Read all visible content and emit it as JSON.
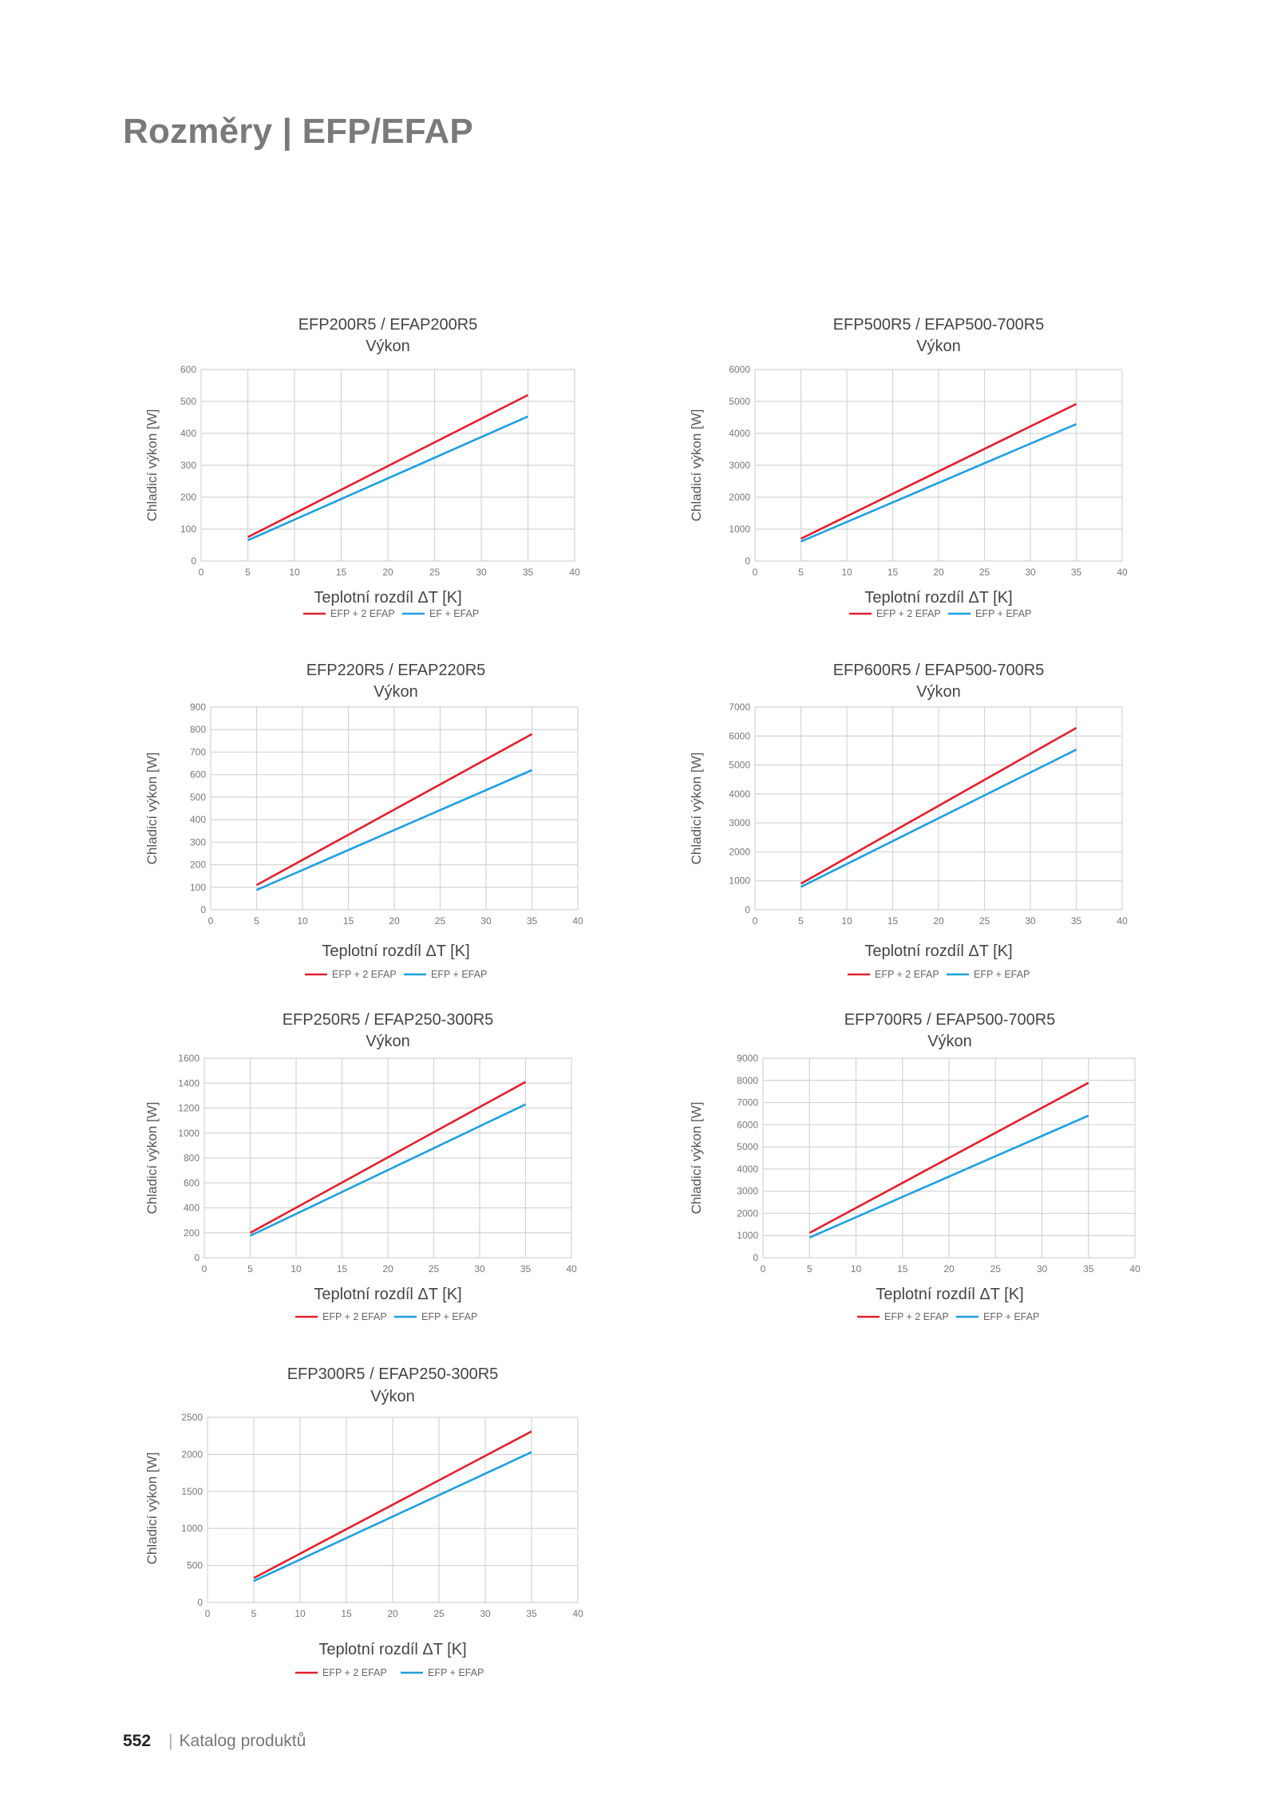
{
  "page": {
    "title": "Rozměry | EFP/EFAP",
    "footer_page_number": "552",
    "footer_separator": "|",
    "footer_text": "Katalog produktů"
  },
  "colors": {
    "series_red": "#e0202e",
    "series_blue": "#1ea0e0",
    "grid": "#d4d4d4"
  },
  "chart_data": [
    {
      "type": "line",
      "title": "EFP200R5 / EFAP200R5",
      "subtitle": "Výkon",
      "xlabel": "Teplotní rozdíl ΔT [K]",
      "ylabel": "Chladicí výkon [W]",
      "xlim": [
        0,
        40
      ],
      "ylim": [
        0,
        600
      ],
      "xticks": [
        0,
        5,
        10,
        15,
        20,
        25,
        30,
        35,
        40
      ],
      "yticks": [
        0,
        100,
        200,
        300,
        400,
        500,
        600
      ],
      "grid": true,
      "legend": "bottom",
      "series": [
        {
          "name": "EFP + 2 EFAP",
          "color": "#e0202e",
          "x": [
            5,
            35
          ],
          "y": [
            75,
            520
          ]
        },
        {
          "name": "EF + EFAP",
          "color": "#1ea0e0",
          "x": [
            5,
            35
          ],
          "y": [
            65,
            453
          ]
        }
      ]
    },
    {
      "type": "line",
      "title": "EFP500R5 / EFAP500-700R5",
      "subtitle": "Výkon",
      "xlabel": "Teplotní rozdíl ΔT [K]",
      "ylabel": "Chladicí výkon [W]",
      "xlim": [
        0,
        40
      ],
      "ylim": [
        0,
        6000
      ],
      "xticks": [
        0,
        5,
        10,
        15,
        20,
        25,
        30,
        35,
        40
      ],
      "yticks": [
        0,
        1000,
        2000,
        3000,
        4000,
        5000,
        6000
      ],
      "grid": true,
      "legend": "bottom",
      "series": [
        {
          "name": "EFP + 2 EFAP",
          "color": "#e0202e",
          "x": [
            5,
            35
          ],
          "y": [
            700,
            4920
          ]
        },
        {
          "name": "EFP + EFAP",
          "color": "#1ea0e0",
          "x": [
            5,
            35
          ],
          "y": [
            610,
            4290
          ]
        }
      ]
    },
    {
      "type": "line",
      "title": "EFP220R5 / EFAP220R5",
      "subtitle": "Výkon",
      "xlabel": "Teplotní rozdíl ΔT [K]",
      "ylabel": "Chladicí výkon [W]",
      "xlim": [
        0,
        40
      ],
      "ylim": [
        0,
        900
      ],
      "xticks": [
        0,
        5,
        10,
        15,
        20,
        25,
        30,
        35,
        40
      ],
      "yticks": [
        0,
        100,
        200,
        300,
        400,
        500,
        600,
        700,
        800,
        900
      ],
      "grid": true,
      "legend": "bottom",
      "series": [
        {
          "name": "EFP + 2 EFAP",
          "color": "#e0202e",
          "x": [
            5,
            35
          ],
          "y": [
            110,
            780
          ]
        },
        {
          "name": "EFP + EFAP",
          "color": "#1ea0e0",
          "x": [
            5,
            35
          ],
          "y": [
            88,
            620
          ]
        }
      ]
    },
    {
      "type": "line",
      "title": "EFP600R5 / EFAP500-700R5",
      "subtitle": "Výkon",
      "xlabel": "Teplotní rozdíl ΔT [K]",
      "ylabel": "Chladicí výkon [W]",
      "xlim": [
        0,
        40
      ],
      "ylim": [
        0,
        7000
      ],
      "xticks": [
        0,
        5,
        10,
        15,
        20,
        25,
        30,
        35,
        40
      ],
      "yticks": [
        0,
        1000,
        2000,
        3000,
        4000,
        5000,
        6000,
        7000
      ],
      "grid": true,
      "legend": "bottom",
      "series": [
        {
          "name": "EFP + 2 EFAP",
          "color": "#e0202e",
          "x": [
            5,
            35
          ],
          "y": [
            900,
            6280
          ]
        },
        {
          "name": "EFP + EFAP",
          "color": "#1ea0e0",
          "x": [
            5,
            35
          ],
          "y": [
            790,
            5530
          ]
        }
      ]
    },
    {
      "type": "line",
      "title": "EFP250R5 / EFAP250-300R5",
      "subtitle": "Výkon",
      "xlabel": "Teplotní rozdíl ΔT [K]",
      "ylabel": "Chladicí výkon [W]",
      "xlim": [
        0,
        40
      ],
      "ylim": [
        0,
        1600
      ],
      "xticks": [
        0,
        5,
        10,
        15,
        20,
        25,
        30,
        35,
        40
      ],
      "yticks": [
        0,
        200,
        400,
        600,
        800,
        1000,
        1200,
        1400,
        1600
      ],
      "grid": true,
      "legend": "bottom",
      "series": [
        {
          "name": "EFP + 2 EFAP",
          "color": "#e0202e",
          "x": [
            5,
            35
          ],
          "y": [
            200,
            1410
          ]
        },
        {
          "name": "EFP + EFAP",
          "color": "#1ea0e0",
          "x": [
            5,
            35
          ],
          "y": [
            176,
            1230
          ]
        }
      ]
    },
    {
      "type": "line",
      "title": "EFP700R5 / EFAP500-700R5",
      "subtitle": "Výkon",
      "xlabel": "Teplotní rozdíl ΔT [K]",
      "ylabel": "Chladicí výkon [W]",
      "xlim": [
        0,
        40
      ],
      "ylim": [
        0,
        9000
      ],
      "xticks": [
        0,
        5,
        10,
        15,
        20,
        25,
        30,
        35,
        40
      ],
      "yticks": [
        0,
        1000,
        2000,
        3000,
        4000,
        5000,
        6000,
        7000,
        8000,
        9000
      ],
      "grid": true,
      "legend": "bottom",
      "series": [
        {
          "name": "EFP + 2 EFAP",
          "color": "#e0202e",
          "x": [
            5,
            35
          ],
          "y": [
            1120,
            7890
          ]
        },
        {
          "name": "EFP + EFAP",
          "color": "#1ea0e0",
          "x": [
            5,
            35
          ],
          "y": [
            910,
            6410
          ]
        }
      ]
    },
    {
      "type": "line",
      "title": "EFP300R5 / EFAP250-300R5",
      "subtitle": "Výkon",
      "xlabel": "Teplotní rozdíl ΔT [K]",
      "ylabel": "Chladicí výkon [W]",
      "xlim": [
        0,
        40
      ],
      "ylim": [
        0,
        2500
      ],
      "xticks": [
        0,
        5,
        10,
        15,
        20,
        25,
        30,
        35,
        40
      ],
      "yticks": [
        0,
        500,
        1000,
        1500,
        2000,
        2500
      ],
      "grid": true,
      "legend": "bottom",
      "series": [
        {
          "name": "EFP + 2 EFAP",
          "color": "#e0202e",
          "x": [
            5,
            35
          ],
          "y": [
            330,
            2310
          ]
        },
        {
          "name": "EFP + EFAP",
          "color": "#1ea0e0",
          "x": [
            5,
            35
          ],
          "y": [
            290,
            2030
          ]
        }
      ]
    }
  ]
}
